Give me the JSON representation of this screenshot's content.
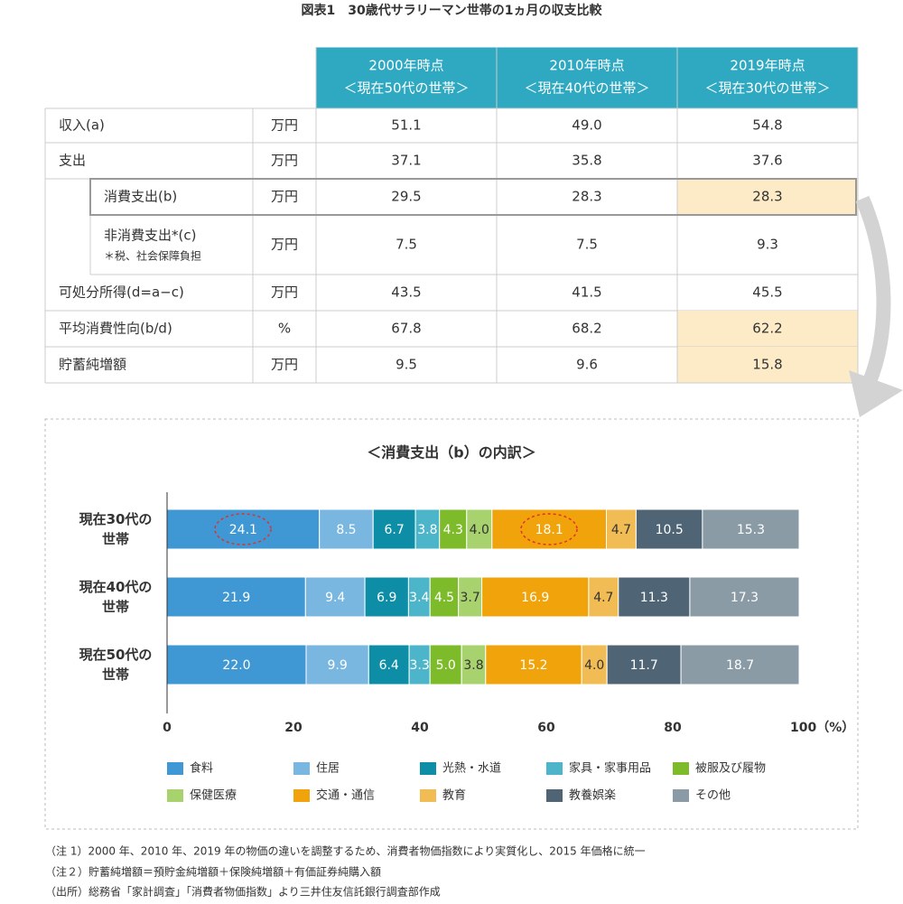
{
  "title": "図表1　30歳代サラリーマン世帯の1ヵ月の収支比較",
  "table": {
    "columns": [
      {
        "period": "2000年時点",
        "group": "＜現在50代の世帯＞"
      },
      {
        "period": "2010年時点",
        "group": "＜現在40代の世帯＞"
      },
      {
        "period": "2019年時点",
        "group": "＜現在30代の世帯＞"
      }
    ],
    "rows": [
      {
        "label": "収入(a)",
        "unit": "万円",
        "values": [
          "51.1",
          "49.0",
          "54.8"
        ]
      },
      {
        "label": "支出",
        "unit": "万円",
        "values": [
          "37.1",
          "35.8",
          "37.6"
        ]
      },
      {
        "label": "消費支出(b)",
        "unit": "万円",
        "values": [
          "29.5",
          "28.3",
          "28.3"
        ]
      },
      {
        "label": "非消費支出*(c)",
        "note": "＊税、社会保障負担",
        "unit": "万円",
        "values": [
          "7.5",
          "7.5",
          "9.3"
        ]
      },
      {
        "label": "可処分所得(d=a−c)",
        "unit": "万円",
        "values": [
          "43.5",
          "41.5",
          "45.5"
        ]
      },
      {
        "label": "平均消費性向(b/d)",
        "unit": "%",
        "values": [
          "67.8",
          "68.2",
          "62.2"
        ]
      },
      {
        "label": "貯蓄純増額",
        "unit": "万円",
        "values": [
          "9.5",
          "9.6",
          "15.8"
        ]
      }
    ]
  },
  "chart_data": {
    "type": "bar",
    "orientation": "horizontal",
    "stacked": true,
    "title": "＜消費支出（b）の内訳＞",
    "categories": [
      "現在30代の世帯",
      "現在40代の世帯",
      "現在50代の世帯"
    ],
    "series": [
      {
        "name": "食料",
        "color": "#3f97d3",
        "values": [
          24.1,
          21.9,
          22.0
        ],
        "value_labels": [
          "24.1",
          "21.9",
          "22.0"
        ]
      },
      {
        "name": "住居",
        "color": "#7ab7e0",
        "values": [
          8.5,
          9.4,
          9.9
        ],
        "value_labels": [
          "8.5",
          "9.4",
          "9.9"
        ]
      },
      {
        "name": "光熱・水道",
        "color": "#0e8ea6",
        "values": [
          6.7,
          6.9,
          6.4
        ],
        "value_labels": [
          "6.7",
          "6.9",
          "6.4"
        ]
      },
      {
        "name": "家具・家事用品",
        "color": "#4db5c9",
        "values": [
          3.8,
          3.4,
          3.3
        ],
        "value_labels": [
          "3.8",
          "3.4",
          "3.3"
        ]
      },
      {
        "name": "被服及び履物",
        "color": "#7dbb2a",
        "values": [
          4.3,
          4.5,
          5.0
        ],
        "value_labels": [
          "4.3",
          "4.5",
          "5.0"
        ]
      },
      {
        "name": "保健医療",
        "color": "#a8d26d",
        "values": [
          4.0,
          3.7,
          3.8
        ],
        "value_labels": [
          "4.0",
          "3.7",
          "3.8"
        ]
      },
      {
        "name": "交通・通信",
        "color": "#f0a30a",
        "values": [
          18.1,
          16.9,
          15.2
        ],
        "value_labels": [
          "18.1",
          "16.9",
          "15.2"
        ]
      },
      {
        "name": "教育",
        "color": "#f2bc55",
        "values": [
          4.7,
          4.7,
          4.0
        ],
        "value_labels": [
          "4.7",
          "4.7",
          "4.0"
        ]
      },
      {
        "name": "教養娯楽",
        "color": "#4f6475",
        "values": [
          10.5,
          11.3,
          11.7
        ],
        "value_labels": [
          "10.5",
          "11.3",
          "11.7"
        ]
      },
      {
        "name": "その他",
        "color": "#8a9ba6",
        "values": [
          15.3,
          17.3,
          18.7
        ],
        "value_labels": [
          "15.3",
          "17.3",
          "18.7"
        ]
      }
    ],
    "xlim": [
      0,
      100
    ],
    "xticks": [
      0,
      20,
      40,
      60,
      80,
      {
        "value": 100,
        "label": "100（%）"
      }
    ]
  },
  "notes": [
    "（注 1）2000 年、2010 年、2019 年の物価の違いを調整するため、消費者物価指数により実質化し、2015 年価格に統一",
    "（注２）貯蓄純増額＝預貯金純増額＋保険純増額＋有価証券純購入額",
    "（出所）総務省「家計調査」「消費者物価指数」より三井住友信託銀行調査部作成"
  ]
}
